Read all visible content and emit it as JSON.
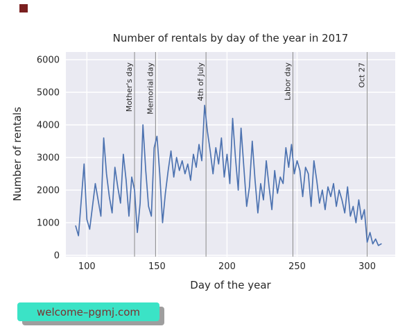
{
  "page": {
    "watermark": "welcome–pgmj.com",
    "watermark_bg": "#3be3c6",
    "watermark_text_color": "#7c3030",
    "watermark_shadow": "#9e9e9e",
    "corner_color": "#7a1f1f"
  },
  "chart_data": {
    "type": "line",
    "title": "Number of rentals by day of the year in 2017",
    "xlabel": "Day of the year",
    "ylabel": "Number of rentals",
    "xlim": [
      85,
      320
    ],
    "ylim": [
      0,
      6000
    ],
    "xticks": [
      100,
      150,
      200,
      250,
      300
    ],
    "yticks": [
      0,
      1000,
      2000,
      3000,
      4000,
      5000,
      6000
    ],
    "grid": true,
    "legend": "none",
    "colors": {
      "line": "#4c72b0",
      "axes_bg": "#eaeaf2",
      "gridline": "#ffffff",
      "annotation_line": "#8a8a8a",
      "tick_text": "#262626"
    },
    "annotations": [
      {
        "day": 134,
        "label": "Mother's day"
      },
      {
        "day": 149,
        "label": "Memorial day"
      },
      {
        "day": 185,
        "label": "4th of July"
      },
      {
        "day": 247,
        "label": "Labor day"
      },
      {
        "day": 300,
        "label": "Oct 27"
      }
    ],
    "series": [
      {
        "name": "rentals",
        "x": [
          92,
          94,
          96,
          98,
          100,
          102,
          104,
          106,
          108,
          110,
          112,
          114,
          116,
          118,
          120,
          122,
          124,
          126,
          128,
          130,
          132,
          134,
          136,
          138,
          140,
          142,
          144,
          146,
          148,
          150,
          152,
          154,
          156,
          158,
          160,
          162,
          164,
          166,
          168,
          170,
          172,
          174,
          176,
          178,
          180,
          182,
          184,
          186,
          188,
          190,
          192,
          194,
          196,
          198,
          200,
          202,
          204,
          206,
          208,
          210,
          212,
          214,
          216,
          218,
          220,
          222,
          224,
          226,
          228,
          230,
          232,
          234,
          236,
          238,
          240,
          242,
          244,
          246,
          248,
          250,
          252,
          254,
          256,
          258,
          260,
          262,
          264,
          266,
          268,
          270,
          272,
          274,
          276,
          278,
          280,
          282,
          284,
          286,
          288,
          290,
          292,
          294,
          296,
          298,
          300,
          302,
          304,
          306,
          308,
          310
        ],
        "y": [
          900,
          600,
          1700,
          2800,
          1100,
          800,
          1500,
          2200,
          1700,
          1200,
          3600,
          2500,
          1800,
          1300,
          2700,
          2100,
          1600,
          3100,
          2300,
          1200,
          2400,
          2000,
          700,
          1600,
          4000,
          2600,
          1500,
          1200,
          3300,
          3650,
          2500,
          1000,
          1900,
          2600,
          3200,
          2400,
          3000,
          2600,
          2900,
          2500,
          2800,
          2300,
          3100,
          2700,
          3400,
          2900,
          4600,
          3800,
          3200,
          2500,
          3300,
          2800,
          3600,
          2400,
          3100,
          2200,
          4200,
          3000,
          2000,
          3900,
          2700,
          1500,
          2100,
          3500,
          2300,
          1300,
          2200,
          1700,
          2900,
          2100,
          1400,
          2600,
          1900,
          2400,
          2200,
          3300,
          2700,
          3400,
          2500,
          2900,
          2600,
          1800,
          2700,
          2500,
          1500,
          2900,
          2300,
          1600,
          2000,
          1400,
          2100,
          1800,
          2200,
          1500,
          2000,
          1700,
          1300,
          2100,
          1200,
          1500,
          1000,
          1700,
          1100,
          1400,
          400,
          700,
          350,
          500,
          300,
          350
        ]
      }
    ]
  }
}
